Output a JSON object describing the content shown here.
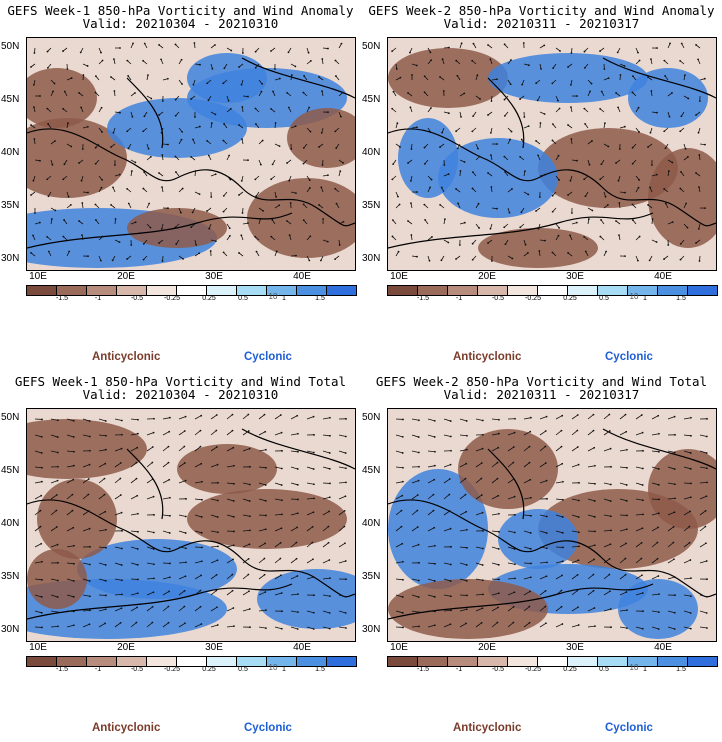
{
  "panels": [
    {
      "title": "GEFS Week-1 850-hPa Vorticity and Wind Anomaly",
      "valid": "Valid: 20210304 - 20210310"
    },
    {
      "title": "GEFS Week-2 850-hPa Vorticity and Wind Anomaly",
      "valid": "Valid: 20210311 - 20210317"
    },
    {
      "title": "GEFS Week-1 850-hPa Vorticity and Wind Total",
      "valid": "Valid: 20210304 - 20210310"
    },
    {
      "title": "GEFS Week-2 850-hPa Vorticity and Wind Total",
      "valid": "Valid: 20210311 - 20210317"
    }
  ],
  "axes": {
    "lat_labels": [
      "50N",
      "45N",
      "40N",
      "35N",
      "30N"
    ],
    "lon_labels": [
      "10E",
      "20E",
      "30E",
      "40E"
    ]
  },
  "colorbar": {
    "labels": [
      "-1.5",
      "-1",
      "-0.5",
      "-0.25",
      "0.25",
      "0.5",
      "1",
      "1.5"
    ],
    "mid_label": "10",
    "colors": [
      "#7a4a3c",
      "#9a6a5a",
      "#b88c7c",
      "#d8b8aa",
      "#f3e6de",
      "#ffffff",
      "#dbf2fb",
      "#a7ddf4",
      "#74b6ec",
      "#4c90e2",
      "#2f6fdd"
    ]
  },
  "legend": {
    "anticyclonic": "Anticyclonic",
    "cyclonic": "Cyclonic"
  },
  "colors": {
    "anticyclonic": "#7a3b2b",
    "cyclonic": "#1e5fd6",
    "brown_field": "#8e5a4a",
    "blue_field": "#3e82de"
  }
}
